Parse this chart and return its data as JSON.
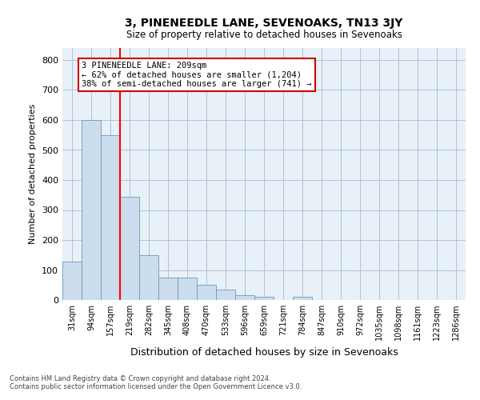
{
  "title": "3, PINENEEDLE LANE, SEVENOAKS, TN13 3JY",
  "subtitle": "Size of property relative to detached houses in Sevenoaks",
  "xlabel": "Distribution of detached houses by size in Sevenoaks",
  "ylabel": "Number of detached properties",
  "footer_line1": "Contains HM Land Registry data © Crown copyright and database right 2024.",
  "footer_line2": "Contains public sector information licensed under the Open Government Licence v3.0.",
  "categories": [
    "31sqm",
    "94sqm",
    "157sqm",
    "219sqm",
    "282sqm",
    "345sqm",
    "408sqm",
    "470sqm",
    "533sqm",
    "596sqm",
    "659sqm",
    "721sqm",
    "784sqm",
    "847sqm",
    "910sqm",
    "972sqm",
    "1035sqm",
    "1098sqm",
    "1161sqm",
    "1223sqm",
    "1286sqm"
  ],
  "values": [
    128,
    600,
    550,
    345,
    150,
    75,
    75,
    50,
    35,
    15,
    12,
    0,
    12,
    0,
    0,
    0,
    0,
    0,
    0,
    0,
    0
  ],
  "bar_color": "#ccdded",
  "bar_edge_color": "#6699bb",
  "grid_color": "#b0c4d8",
  "background_color": "#e8f0f8",
  "red_line_x": 2.5,
  "annotation_line1": "3 PINENEEDLE LANE: 209sqm",
  "annotation_line2": "← 62% of detached houses are smaller (1,204)",
  "annotation_line3": "38% of semi-detached houses are larger (741) →",
  "annotation_box_color": "#ffffff",
  "annotation_box_edge": "#cc0000",
  "ylim": [
    0,
    840
  ],
  "yticks": [
    0,
    100,
    200,
    300,
    400,
    500,
    600,
    700,
    800
  ]
}
